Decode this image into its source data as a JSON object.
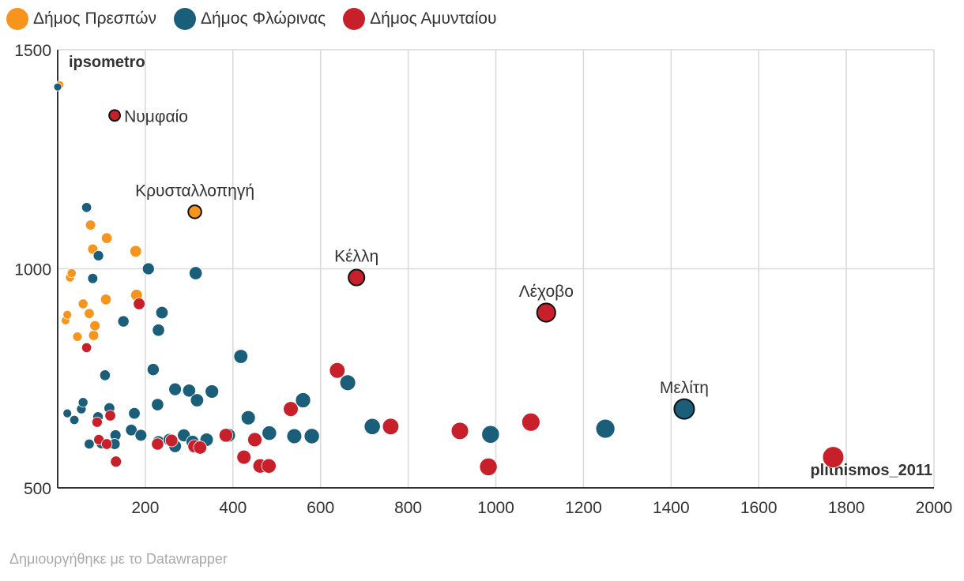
{
  "legend": [
    {
      "name": "Δήμος Πρεσπών",
      "color": "#f7941d"
    },
    {
      "name": "Δήμος Φλώρινας",
      "color": "#1a5e7a"
    },
    {
      "name": "Δήμος Αμυνταίου",
      "color": "#c8202a"
    }
  ],
  "credit": "Δημιουργήθηκε με το Datawrapper",
  "chart_data": {
    "type": "scatter",
    "title": "",
    "xlabel": "plithismos_2011",
    "ylabel": "ipsometro",
    "xlim": [
      0,
      2000
    ],
    "ylim": [
      500,
      1500
    ],
    "x_ticks": [
      "200",
      "400",
      "600",
      "800",
      "1000",
      "1200",
      "1400",
      "1600",
      "1800",
      "2000"
    ],
    "y_ticks": [
      "500",
      "1000",
      "1500"
    ],
    "grid": true,
    "legend_position": "top-left",
    "series": [
      {
        "name": "Δήμος Πρεσπών",
        "color": "#f7941d",
        "points": [
          [
            5,
            1420
          ],
          [
            18,
            882
          ],
          [
            22,
            895
          ],
          [
            28,
            980
          ],
          [
            32,
            990
          ],
          [
            45,
            845
          ],
          [
            58,
            920
          ],
          [
            72,
            898
          ],
          [
            82,
            848
          ],
          [
            85,
            870
          ],
          [
            75,
            1100
          ],
          [
            80,
            1045
          ],
          [
            110,
            930
          ],
          [
            112,
            1070
          ],
          [
            178,
            1040
          ],
          [
            180,
            940
          ],
          [
            313,
            1130
          ]
        ]
      },
      {
        "name": "Δήμος Φλώρινας",
        "color": "#1a5e7a",
        "points": [
          [
            0,
            1415
          ],
          [
            66,
            1140
          ],
          [
            93,
            1030
          ],
          [
            80,
            978
          ],
          [
            150,
            880
          ],
          [
            207,
            1000
          ],
          [
            238,
            900
          ],
          [
            230,
            860
          ],
          [
            108,
            757
          ],
          [
            218,
            770
          ],
          [
            22,
            670
          ],
          [
            38,
            655
          ],
          [
            54,
            680
          ],
          [
            58,
            695
          ],
          [
            118,
            682
          ],
          [
            132,
            620
          ],
          [
            168,
            632
          ],
          [
            175,
            670
          ],
          [
            190,
            620
          ],
          [
            228,
            690
          ],
          [
            230,
            605
          ],
          [
            255,
            610
          ],
          [
            268,
            595
          ],
          [
            268,
            725
          ],
          [
            288,
            620
          ],
          [
            300,
            722
          ],
          [
            308,
            605
          ],
          [
            318,
            700
          ],
          [
            340,
            610
          ],
          [
            352,
            720
          ],
          [
            390,
            620
          ],
          [
            418,
            800
          ],
          [
            435,
            660
          ],
          [
            483,
            625
          ],
          [
            540,
            618
          ],
          [
            560,
            700
          ],
          [
            580,
            618
          ],
          [
            662,
            740
          ],
          [
            718,
            640
          ],
          [
            988,
            622
          ],
          [
            1250,
            635
          ],
          [
            1430,
            680
          ],
          [
            315,
            990
          ],
          [
            92,
            662
          ],
          [
            72,
            600
          ],
          [
            100,
            601
          ],
          [
            130,
            600
          ]
        ]
      },
      {
        "name": "Δήμος Αμυνταίου",
        "color": "#c8202a",
        "points": [
          [
            130,
            1350
          ],
          [
            186,
            920
          ],
          [
            66,
            820
          ],
          [
            90,
            650
          ],
          [
            94,
            610
          ],
          [
            112,
            600
          ],
          [
            120,
            665
          ],
          [
            133,
            560
          ],
          [
            228,
            600
          ],
          [
            260,
            608
          ],
          [
            312,
            595
          ],
          [
            325,
            592
          ],
          [
            384,
            620
          ],
          [
            425,
            570
          ],
          [
            450,
            610
          ],
          [
            462,
            550
          ],
          [
            482,
            550
          ],
          [
            532,
            680
          ],
          [
            638,
            768
          ],
          [
            682,
            980
          ],
          [
            760,
            640
          ],
          [
            918,
            630
          ],
          [
            983,
            548
          ],
          [
            1080,
            650
          ],
          [
            1115,
            900
          ],
          [
            1770,
            570
          ]
        ]
      }
    ],
    "annotations": [
      {
        "text": "Νυμφαίο",
        "x": 130,
        "y": 1350
      },
      {
        "text": "Κρυσταλλοπηγή",
        "x": 313,
        "y": 1130
      },
      {
        "text": "Κέλλη",
        "x": 682,
        "y": 980
      },
      {
        "text": "Λέχοβο",
        "x": 1115,
        "y": 900
      },
      {
        "text": "Μελίτη",
        "x": 1430,
        "y": 680
      }
    ]
  }
}
